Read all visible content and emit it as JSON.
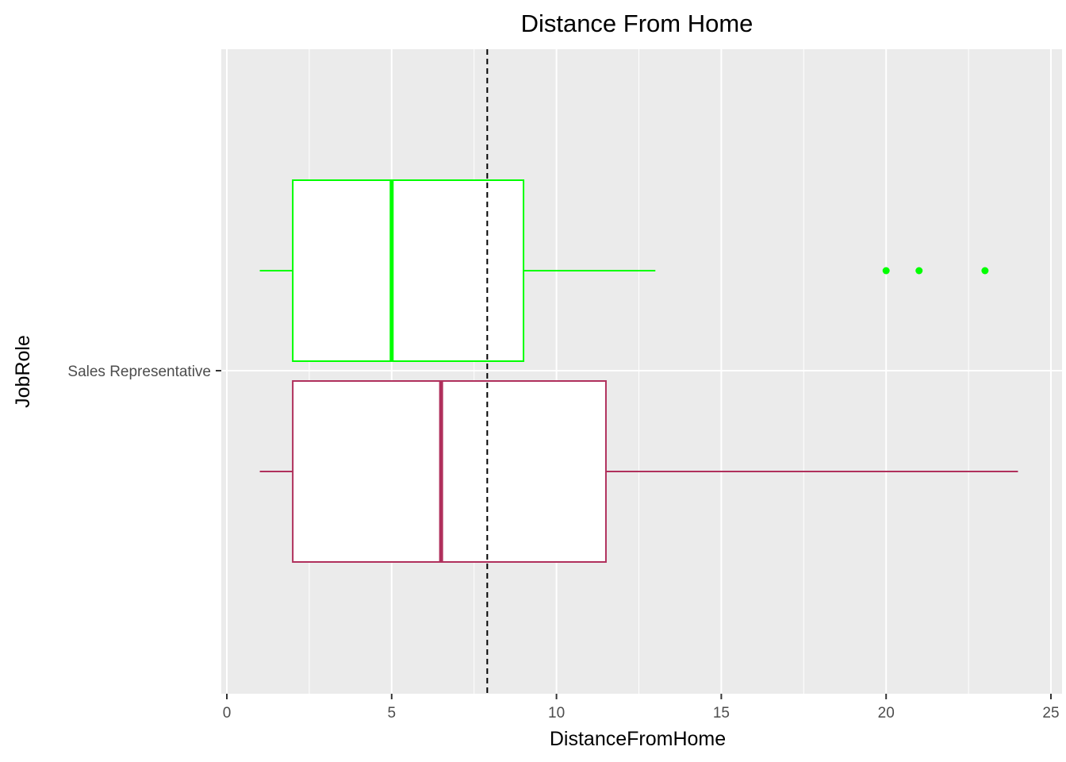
{
  "chart_data": {
    "type": "boxplot",
    "title": "Distance From Home",
    "xlabel": "DistanceFromHome",
    "ylabel": "JobRole",
    "xlim": [
      0,
      25
    ],
    "x_ticks": [
      "0",
      "5",
      "10",
      "15",
      "20",
      "25"
    ],
    "x_tick_values": [
      0,
      5,
      10,
      15,
      20,
      25
    ],
    "categories": [
      "Sales Representative"
    ],
    "reference_line": {
      "value": 7.9,
      "style": "dashed",
      "color": "#000000"
    },
    "grid": true,
    "background": "#ebebeb",
    "series": [
      {
        "category": "Sales Representative",
        "position": "upper",
        "color": "#00ff00",
        "fill": "#ffffff",
        "whisker_low": 1,
        "q1": 2,
        "median": 5,
        "q3": 9,
        "whisker_high": 13,
        "outliers": [
          20,
          21,
          23
        ]
      },
      {
        "category": "Sales Representative",
        "position": "lower",
        "color": "#b0305c",
        "fill": "#ffffff",
        "whisker_low": 1,
        "q1": 2,
        "median": 6.5,
        "q3": 11.5,
        "whisker_high": 24,
        "outliers": []
      }
    ]
  }
}
